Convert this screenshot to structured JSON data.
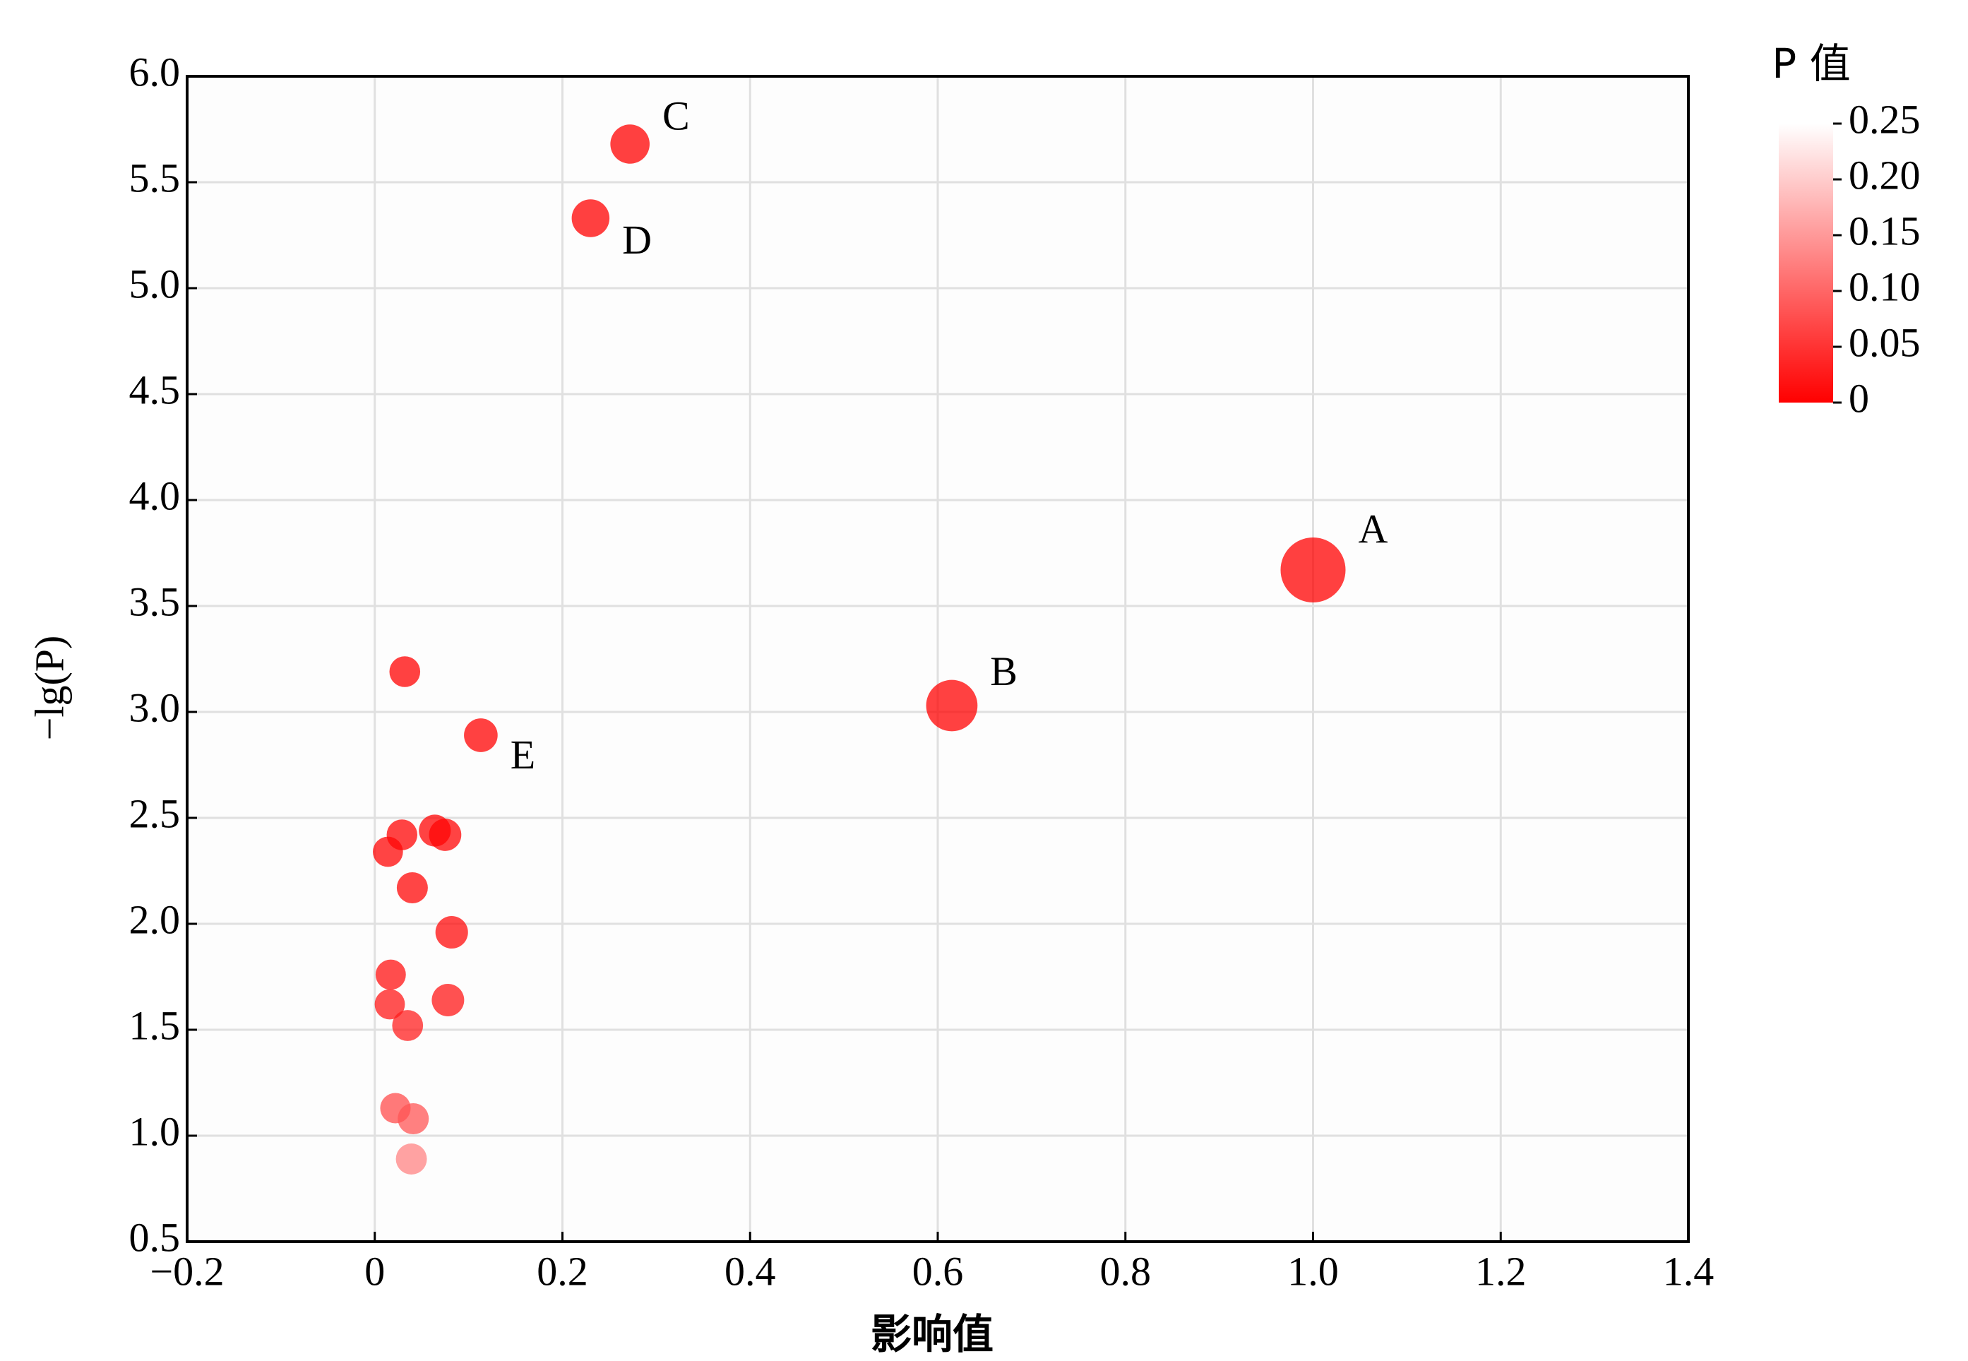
{
  "chart_data": {
    "type": "scatter",
    "x_label": "影响值",
    "y_label": "−lg(P)",
    "x": [
      1.0,
      0.615,
      0.272,
      0.23,
      0.113,
      0.032,
      0.029,
      0.014,
      0.064,
      0.075,
      0.04,
      0.082,
      0.017,
      0.016,
      0.078,
      0.035,
      0.022,
      0.041,
      0.039
    ],
    "y": [
      3.67,
      3.03,
      5.68,
      5.33,
      2.89,
      3.19,
      2.42,
      2.34,
      2.44,
      2.42,
      2.17,
      1.96,
      1.76,
      1.62,
      1.64,
      1.52,
      1.13,
      1.08,
      0.89
    ],
    "labels": [
      "A",
      "B",
      "C",
      "D",
      "E",
      null,
      null,
      null,
      null,
      null,
      null,
      null,
      null,
      null,
      null,
      null,
      null,
      null,
      null
    ],
    "xlim": [
      -0.2,
      1.4
    ],
    "xticks": [
      {
        "value": -0.2,
        "label": "−0.2"
      },
      0,
      0.2,
      0.4,
      0.6,
      0.8,
      {
        "value": 1,
        "label": "1.0"
      },
      1.2,
      1.4
    ],
    "ylim": [
      0.5,
      6
    ],
    "yticks": [
      0.5,
      {
        "value": 1,
        "label": "1.0"
      },
      1.5,
      {
        "value": 2,
        "label": "2.0"
      },
      2.5,
      {
        "value": 3,
        "label": "3.0"
      },
      3.5,
      {
        "value": 4,
        "label": "4.0"
      },
      4.5,
      {
        "value": 5,
        "label": "5.0"
      },
      5.5,
      {
        "value": 6,
        "label": "6.0"
      }
    ],
    "grid": true,
    "colorbar": {
      "title": "P 值",
      "lim": [
        0,
        0.25
      ],
      "colors": [
        "#ff0000",
        "#ffffff"
      ],
      "ticks": [
        0,
        0.05,
        {
          "value": 0.1,
          "label": "0.10"
        },
        0.15,
        {
          "value": 0.2,
          "label": "0.20"
        },
        0.25
      ]
    }
  }
}
